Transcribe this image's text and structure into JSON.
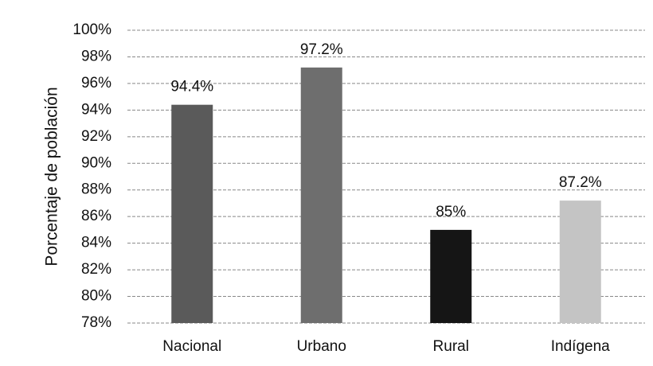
{
  "chart_data": {
    "type": "bar",
    "y_label": "Porcentaje de población",
    "categories": [
      "Nacional",
      "Urbano",
      "Rural",
      "Indígena"
    ],
    "values": [
      94.4,
      97.2,
      85,
      87.2
    ],
    "value_labels": [
      "94.4%",
      "97.2%",
      "85%",
      "87.2%"
    ],
    "colors": [
      "#5a5a5a",
      "#6e6e6e",
      "#151515",
      "#c4c4c4"
    ],
    "ylim": [
      78,
      100
    ],
    "yticks": [
      {
        "value": 78,
        "label": "78%"
      },
      {
        "value": 80,
        "label": "80%"
      },
      {
        "value": 82,
        "label": "82%"
      },
      {
        "value": 84,
        "label": "84%"
      },
      {
        "value": 86,
        "label": "86%"
      },
      {
        "value": 88,
        "label": "88%"
      },
      {
        "value": 90,
        "label": "90%"
      },
      {
        "value": 92,
        "label": "92%"
      },
      {
        "value": 94,
        "label": "94%"
      },
      {
        "value": 96,
        "label": "96%"
      },
      {
        "value": 98,
        "label": "98%"
      },
      {
        "value": 100,
        "label": "100%"
      }
    ],
    "grid": true
  }
}
